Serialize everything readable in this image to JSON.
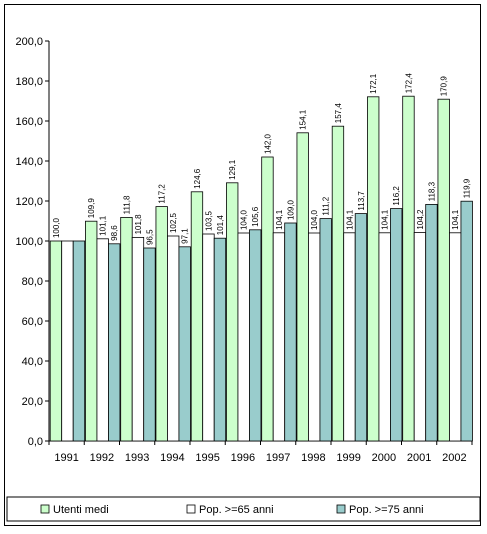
{
  "chart_data": {
    "type": "bar",
    "title": "",
    "xlabel": "",
    "ylabel": "",
    "categories": [
      "1991",
      "1992",
      "1993",
      "1994",
      "1995",
      "1996",
      "1997",
      "1998",
      "1999",
      "2000",
      "2001",
      "2002"
    ],
    "ylim": [
      0,
      200
    ],
    "ytick_labels": [
      "0,0",
      "20,0",
      "40,0",
      "60,0",
      "80,0",
      "100,0",
      "120,0",
      "140,0",
      "160,0",
      "180,0",
      "200,0"
    ],
    "grid": false,
    "legend_position": "bottom",
    "series": [
      {
        "name": "Utenti medi",
        "color": "#ccffcc",
        "values": [
          100.0,
          109.9,
          111.8,
          117.2,
          124.6,
          129.1,
          142.0,
          154.1,
          157.4,
          172.1,
          172.4,
          170.9
        ],
        "labels": [
          "100,0",
          "109,9",
          "111,8",
          "117,2",
          "124,6",
          "129,1",
          "142,0",
          "154,1",
          "157,4",
          "172,1",
          "172,4",
          "170,9"
        ]
      },
      {
        "name": "Pop. >=65 anni",
        "color": "#ffffff",
        "values": [
          100.0,
          101.1,
          101.8,
          102.5,
          103.5,
          104.0,
          104.1,
          104.0,
          104.1,
          104.1,
          104.2,
          104.1
        ],
        "labels": [
          "",
          "101,1",
          "101,8",
          "102,5",
          "103,5",
          "104,0",
          "104,1",
          "104,0",
          "104,1",
          "104,1",
          "104,2",
          "104,1"
        ]
      },
      {
        "name": "Pop. >=75 anni",
        "color": "#99cccc",
        "values": [
          100.0,
          98.6,
          96.5,
          97.1,
          101.4,
          105.6,
          109.0,
          111.2,
          113.7,
          116.2,
          118.3,
          119.9
        ],
        "labels": [
          "",
          "98,6",
          "96,5",
          "97,1",
          "101,4",
          "105,6",
          "109,0",
          "111,2",
          "113,7",
          "116,2",
          "118,3",
          "119,9"
        ]
      }
    ]
  }
}
